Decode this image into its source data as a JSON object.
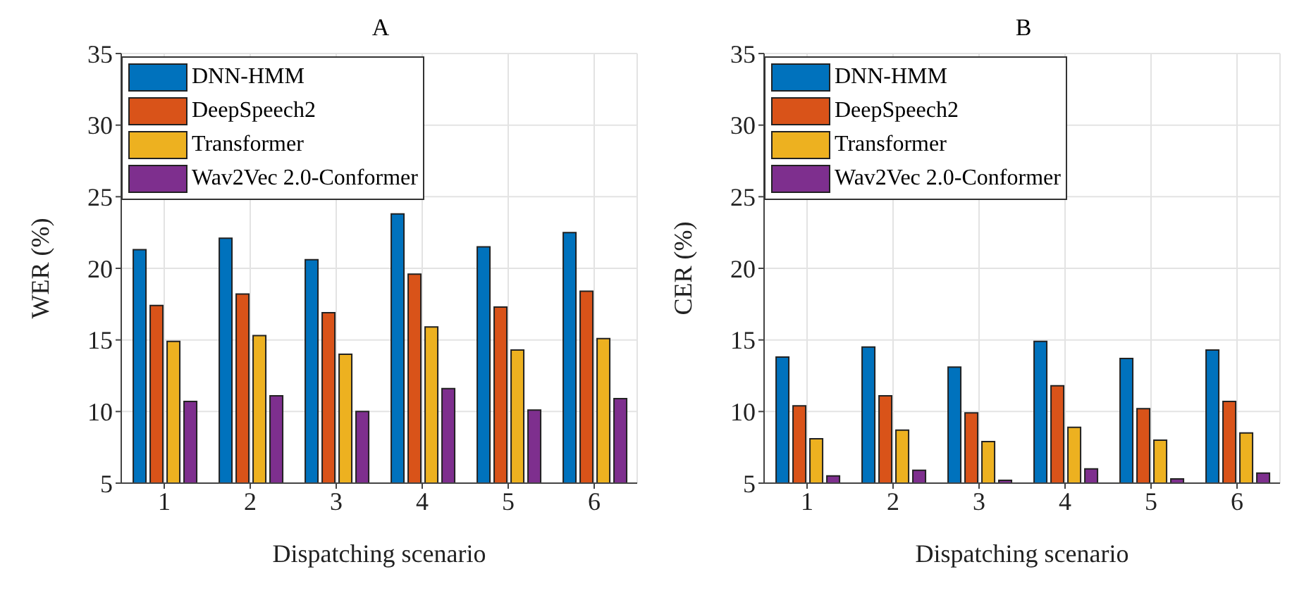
{
  "chart_data": [
    {
      "type": "bar",
      "title": "A",
      "xlabel": "Dispatching scenario",
      "ylabel": "WER (%)",
      "categories": [
        "1",
        "2",
        "3",
        "4",
        "5",
        "6"
      ],
      "ylim": [
        5,
        35
      ],
      "yticks": [
        5,
        10,
        15,
        20,
        25,
        30,
        35
      ],
      "grid": true,
      "legend": "top left",
      "series": [
        {
          "name": "DNN-HMM",
          "color": "#0072bd",
          "values": [
            21.3,
            22.1,
            20.6,
            23.8,
            21.5,
            22.5
          ]
        },
        {
          "name": "DeepSpeech2",
          "color": "#d95319",
          "values": [
            17.4,
            18.2,
            16.9,
            19.6,
            17.3,
            18.4
          ]
        },
        {
          "name": "Transformer",
          "color": "#edb120",
          "values": [
            14.9,
            15.3,
            14.0,
            15.9,
            14.3,
            15.1
          ]
        },
        {
          "name": "Wav2Vec 2.0-Conformer",
          "color": "#7e2f8e",
          "values": [
            10.7,
            11.1,
            10.0,
            11.6,
            10.1,
            10.9
          ]
        }
      ]
    },
    {
      "type": "bar",
      "title": "B",
      "xlabel": "Dispatching scenario",
      "ylabel": "CER (%)",
      "categories": [
        "1",
        "2",
        "3",
        "4",
        "5",
        "6"
      ],
      "ylim": [
        5,
        35
      ],
      "yticks": [
        5,
        10,
        15,
        20,
        25,
        30,
        35
      ],
      "grid": true,
      "legend": "top left",
      "series": [
        {
          "name": "DNN-HMM",
          "color": "#0072bd",
          "values": [
            13.8,
            14.5,
            13.1,
            14.9,
            13.7,
            14.3
          ]
        },
        {
          "name": "DeepSpeech2",
          "color": "#d95319",
          "values": [
            10.4,
            11.1,
            9.9,
            11.8,
            10.2,
            10.7
          ]
        },
        {
          "name": "Transformer",
          "color": "#edb120",
          "values": [
            8.1,
            8.7,
            7.9,
            8.9,
            8.0,
            8.5
          ]
        },
        {
          "name": "Wav2Vec 2.0-Conformer",
          "color": "#7e2f8e",
          "values": [
            5.5,
            5.9,
            5.2,
            6.0,
            5.3,
            5.7
          ]
        }
      ]
    }
  ]
}
